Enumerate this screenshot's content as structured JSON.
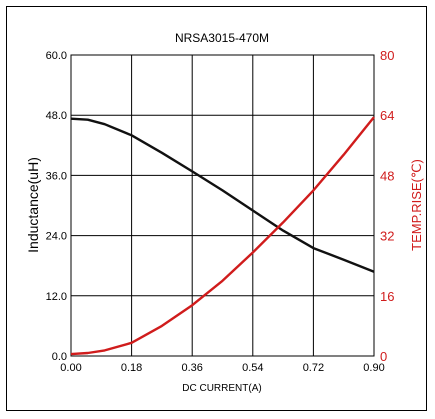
{
  "chart_data": {
    "type": "line",
    "title": "NRSA3015-470M",
    "xlabel": "DC CURRENT(A)",
    "ylabel_left": "Inductance(uH)",
    "ylabel_right": "TEMP.RISE(℃)",
    "xlim": [
      0,
      0.9
    ],
    "ylim_left": [
      0,
      60
    ],
    "ylim_right": [
      0,
      80
    ],
    "x_ticks": [
      "0.00",
      "0.18",
      "0.36",
      "0.54",
      "0.72",
      "0.90"
    ],
    "y_left_ticks": [
      "0.0",
      "12.0",
      "24.0",
      "36.0",
      "48.0",
      "60.0"
    ],
    "y_right_ticks": [
      "0",
      "16",
      "32",
      "48",
      "64",
      "80"
    ],
    "grid": true,
    "legend": "none",
    "series": [
      {
        "axis": "left",
        "color": "#111111",
        "points": [
          [
            0.0,
            47.3
          ],
          [
            0.05,
            47.1
          ],
          [
            0.1,
            46.2
          ],
          [
            0.18,
            44.0
          ],
          [
            0.27,
            40.5
          ],
          [
            0.36,
            36.8
          ],
          [
            0.45,
            33.0
          ],
          [
            0.54,
            29.0
          ],
          [
            0.63,
            25.0
          ],
          [
            0.72,
            21.5
          ],
          [
            0.81,
            19.2
          ],
          [
            0.9,
            16.8
          ]
        ]
      },
      {
        "axis": "right",
        "color": "#d01c1c",
        "points": [
          [
            0.0,
            0.5
          ],
          [
            0.05,
            0.8
          ],
          [
            0.1,
            1.5
          ],
          [
            0.18,
            3.5
          ],
          [
            0.27,
            8.0
          ],
          [
            0.36,
            13.5
          ],
          [
            0.45,
            20.0
          ],
          [
            0.54,
            27.5
          ],
          [
            0.63,
            35.5
          ],
          [
            0.72,
            44.0
          ],
          [
            0.81,
            53.5
          ],
          [
            0.9,
            63.5
          ]
        ]
      }
    ]
  },
  "colors": {
    "left_axis": "#111111",
    "right_axis": "#d01c1c",
    "grid": "#000000"
  }
}
